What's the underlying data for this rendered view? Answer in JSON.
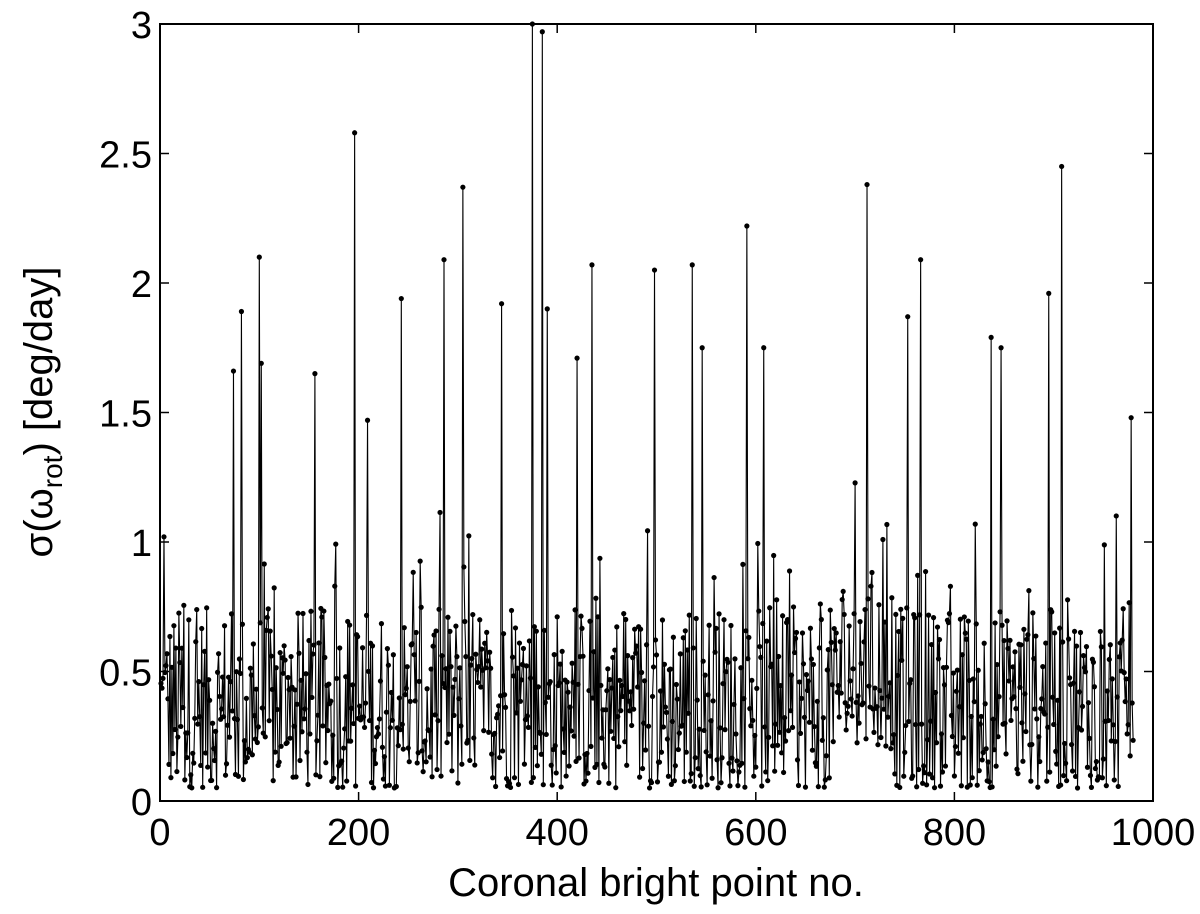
{
  "chart_data": {
    "type": "line",
    "xlabel": "Coronal bright point no.",
    "ylabel": {
      "prefix": "σ(ω",
      "subscript": "rot",
      "suffix": ") [deg/day]"
    },
    "xlim": [
      0,
      1000
    ],
    "ylim": [
      0,
      3
    ],
    "xticks": [
      0,
      200,
      400,
      600,
      800,
      1000
    ],
    "xtick_labels": [
      "0",
      "200",
      "400",
      "600",
      "800",
      "1000"
    ],
    "yticks": [
      0,
      0.5,
      1,
      1.5,
      2,
      2.5,
      3
    ],
    "ytick_labels": [
      "0",
      "0.5",
      "1",
      "1.5",
      "2",
      "2.5",
      "3"
    ],
    "grid": false,
    "legend": "none",
    "marker": "dot",
    "line_color": "#000000",
    "n_points": 980,
    "series": [
      {
        "x_start": 1,
        "x_step": 1,
        "values_note": "baseline ~0.2–0.7 with 30 tall spikes",
        "base_range": [
          0.05,
          0.75
        ],
        "peaks": [
          {
            "x": 4,
            "y": 1.02
          },
          {
            "x": 74,
            "y": 1.66
          },
          {
            "x": 82,
            "y": 1.89
          },
          {
            "x": 100,
            "y": 2.1
          },
          {
            "x": 102,
            "y": 1.69
          },
          {
            "x": 156,
            "y": 1.65
          },
          {
            "x": 196,
            "y": 2.58
          },
          {
            "x": 209,
            "y": 1.47
          },
          {
            "x": 243,
            "y": 1.94
          },
          {
            "x": 286,
            "y": 2.09
          },
          {
            "x": 305,
            "y": 2.37
          },
          {
            "x": 344,
            "y": 1.92
          },
          {
            "x": 375,
            "y": 3.0
          },
          {
            "x": 385,
            "y": 2.97
          },
          {
            "x": 390,
            "y": 1.9
          },
          {
            "x": 435,
            "y": 2.07
          },
          {
            "x": 498,
            "y": 2.05
          },
          {
            "x": 536,
            "y": 2.07
          },
          {
            "x": 591,
            "y": 2.22
          },
          {
            "x": 608,
            "y": 1.75
          },
          {
            "x": 712,
            "y": 2.38
          },
          {
            "x": 753,
            "y": 1.87
          },
          {
            "x": 766,
            "y": 2.09
          },
          {
            "x": 837,
            "y": 1.79
          },
          {
            "x": 847,
            "y": 1.75
          },
          {
            "x": 895,
            "y": 1.96
          },
          {
            "x": 908,
            "y": 2.45
          },
          {
            "x": 978,
            "y": 1.48
          },
          {
            "x": 546,
            "y": 1.75
          },
          {
            "x": 420,
            "y": 1.71
          }
        ]
      }
    ]
  }
}
